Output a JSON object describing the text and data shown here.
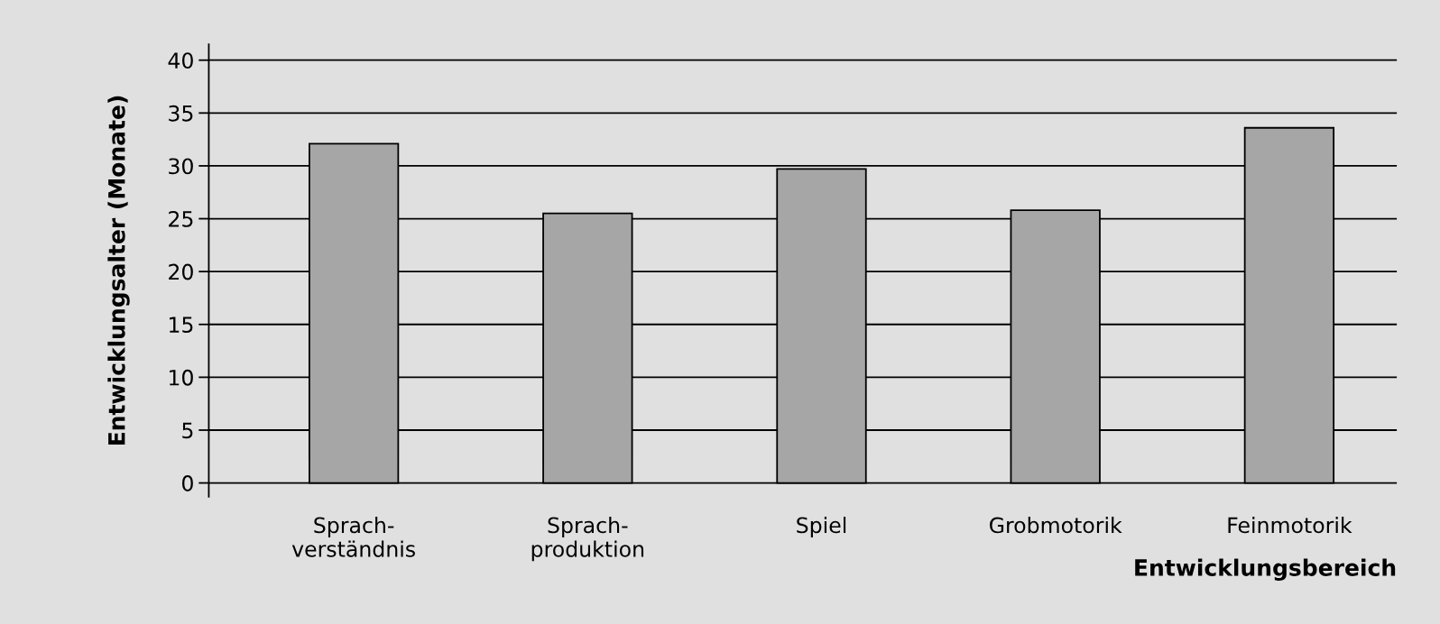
{
  "chart_data": {
    "type": "bar",
    "categories": [
      "Sprach-\nverständnis",
      "Sprach-\nproduktion",
      "Spiel",
      "Grobmotorik",
      "Feinmotorik"
    ],
    "values": [
      32.1,
      25.5,
      29.7,
      25.8,
      33.6
    ],
    "color": "#a6a6a6",
    "xlabel": "Entwicklungsbereich",
    "ylabel": "Entwicklungsalter (Monate)",
    "ylim": [
      -1.3,
      41.5
    ],
    "yticks": [
      0,
      5,
      10,
      15,
      20,
      25,
      30,
      35,
      40
    ],
    "grid": "y",
    "legend": false
  }
}
